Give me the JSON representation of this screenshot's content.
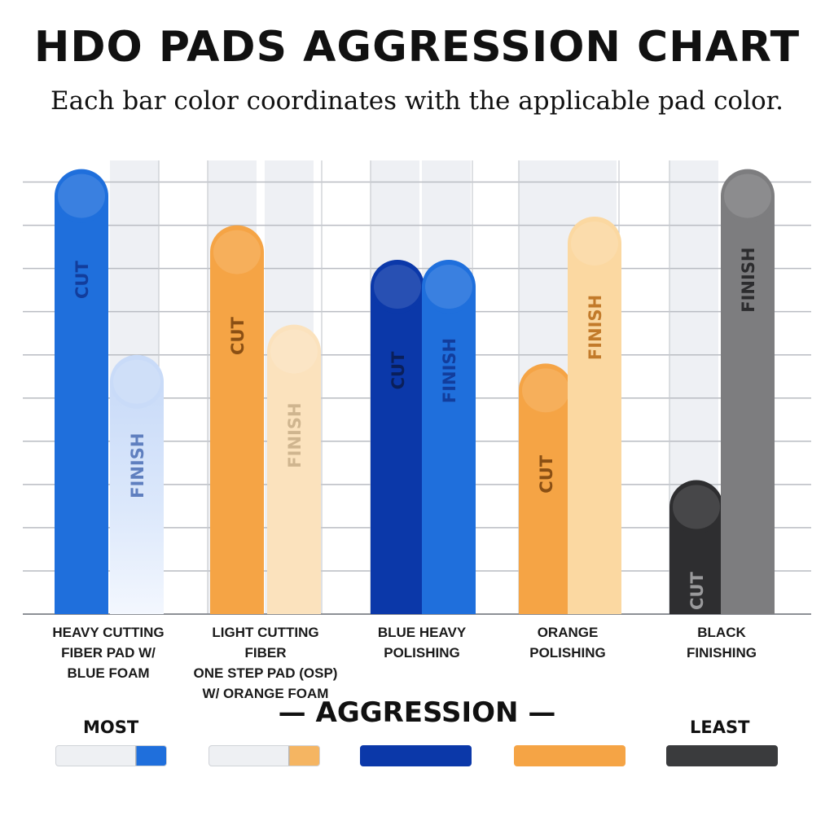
{
  "header": {
    "title": "HDO PADS AGGRESSION CHART",
    "subtitle": "Each bar color coordinates with the applicable pad color."
  },
  "chart_data": {
    "type": "bar",
    "title": "HDO PADS AGGRESSION CHART",
    "subtitle": "Each bar color coordinates with the applicable pad color.",
    "categories": [
      "HEAVY CUTTING FIBER PAD W/ BLUE FOAM",
      "LIGHT CUTTING FIBER ONE STEP PAD (OSP) W/ ORANGE FOAM",
      "BLUE HEAVY POLISHING",
      "ORANGE POLISHING",
      "BLACK FINISHING"
    ],
    "category_lines": [
      [
        "HEAVY CUTTING",
        "FIBER PAD W/",
        "BLUE FOAM"
      ],
      [
        "LIGHT CUTTING FIBER",
        "ONE STEP PAD (OSP)",
        "W/ ORANGE FOAM"
      ],
      [
        "BLUE HEAVY",
        "POLISHING"
      ],
      [
        "ORANGE",
        "POLISHING"
      ],
      [
        "BLACK",
        "FINISHING"
      ]
    ],
    "series": [
      {
        "name": "CUT",
        "values": [
          10.3,
          9.0,
          8.2,
          5.8,
          3.1
        ],
        "colors": [
          "#1f6fdc",
          "#f5a445",
          "#0b38a9",
          "#f5a445",
          "#2e2e30"
        ],
        "label_colors": [
          "#123d9c",
          "#8a4f14",
          "#0a1f5a",
          "#8a4f14",
          "#9a9a9c"
        ]
      },
      {
        "name": "FINISH",
        "values": [
          6.0,
          6.7,
          8.2,
          9.2,
          10.3
        ],
        "colors": [
          "#d9e6fb",
          "#fbe2bd",
          "#1f6fdc",
          "#fbd8a1",
          "#7d7d7f"
        ],
        "label_colors": [
          "#5f7fbf",
          "#cfb58f",
          "#123d9c",
          "#c27a2a",
          "#2c2c2e"
        ]
      }
    ],
    "ylim": [
      0,
      10.5
    ],
    "yticks": [
      0,
      1,
      2,
      3,
      4,
      5,
      6,
      7,
      8,
      9,
      10
    ],
    "grid": true,
    "legend": {
      "title": "AGGRESSION",
      "most_label": "MOST",
      "least_label": "LEAST",
      "scale": [
        {
          "name": "heavy-cutting",
          "colors": [
            "#eef0f3",
            "#1f6fdc"
          ],
          "fill": 0.28
        },
        {
          "name": "light-cutting",
          "colors": [
            "#eef0f3",
            "#f5b562"
          ],
          "fill": 0.28
        },
        {
          "name": "blue-heavy",
          "colors": [
            "#0b38a9"
          ],
          "fill": 1
        },
        {
          "name": "orange",
          "colors": [
            "#f5a445"
          ],
          "fill": 1
        },
        {
          "name": "black",
          "colors": [
            "#3a3b3d"
          ],
          "fill": 1
        }
      ]
    }
  }
}
